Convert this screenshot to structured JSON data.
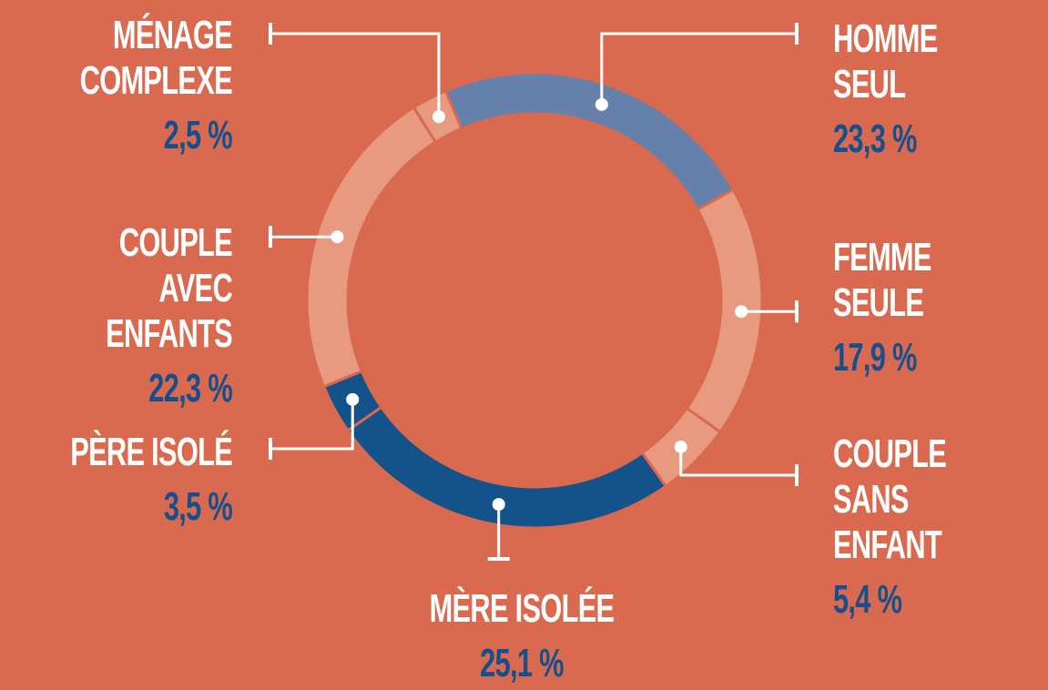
{
  "chart_data": {
    "type": "donut",
    "categories": [
      "HOMME SEUL",
      "FEMME SEULE",
      "COUPLE\nSANS ENFANT",
      "MÈRE ISOLÉE",
      "PÈRE ISOLÉ",
      "COUPLE\nAVEC ENFANTS",
      "MÉNAGE\nCOMPLEXE"
    ],
    "values": [
      23.3,
      17.9,
      5.4,
      25.1,
      3.5,
      22.3,
      2.5
    ],
    "value_labels": [
      "23,3 %",
      "17,9 %",
      "5,4 %",
      "25,1 %",
      "3,5 %",
      "22,3 %",
      "2,5 %"
    ],
    "colors": [
      "#6580ab",
      "#e89a80",
      "#e89a80",
      "#14538a",
      "#14538a",
      "#e89a80",
      "#e89a80"
    ]
  }
}
